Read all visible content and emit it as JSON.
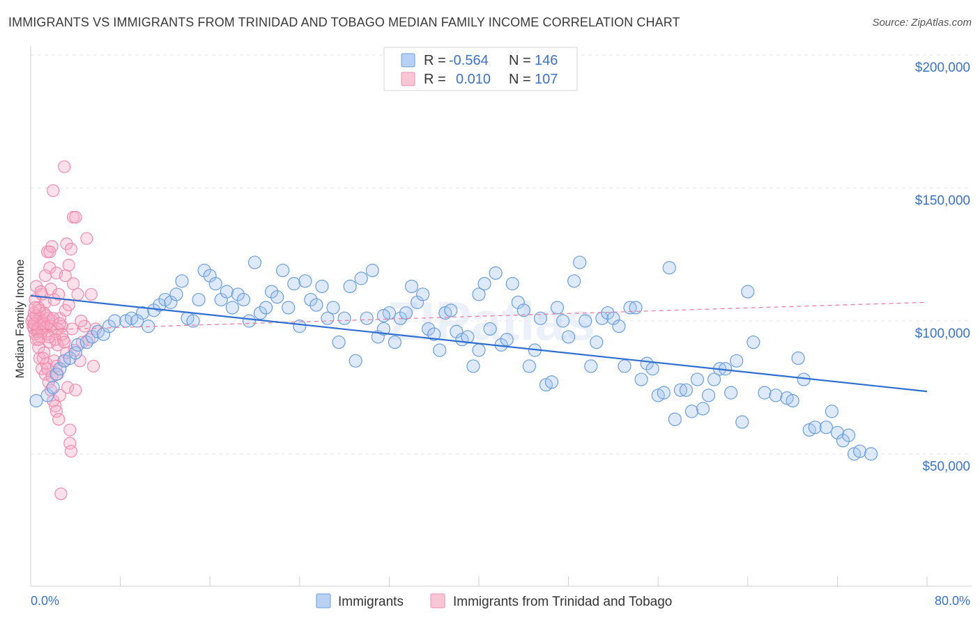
{
  "title": "IMMIGRANTS VS IMMIGRANTS FROM TRINIDAD AND TOBAGO MEDIAN FAMILY INCOME CORRELATION CHART",
  "source": "Source: ZipAtlas.com",
  "watermark": "ZIPatlas",
  "colors": {
    "blue": "#6a9ee0",
    "blue_line": "#2f6fd1",
    "pink": "#f08cad",
    "pink_line": "#e8809f",
    "axis_text": "#3b73c8"
  },
  "legend": {
    "rows": [
      {
        "r_label": "R =",
        "r_value": "-0.564",
        "n_label": "N =",
        "n_value": "146"
      },
      {
        "r_label": "R =",
        "r_value": "0.010",
        "n_label": "N =",
        "n_value": "107"
      }
    ]
  },
  "chart_data": {
    "type": "scatter",
    "ylabel": "Median Family Income",
    "x_tick_labels": [
      "0.0%",
      "80.0%"
    ],
    "y_tick_labels": [
      "$50,000",
      "$100,000",
      "$150,000",
      "$200,000"
    ],
    "xlim": [
      0,
      80
    ],
    "ylim": [
      0,
      210000
    ],
    "grid": true,
    "legend_position": "top-center",
    "series": [
      {
        "name": "Immigrants",
        "color": "#6a9ee0",
        "trend": {
          "x": [
            0,
            80
          ],
          "y": [
            109500,
            73500
          ]
        },
        "points": [
          [
            0.5,
            70000
          ],
          [
            1.5,
            72000
          ],
          [
            2.0,
            75000
          ],
          [
            2.3,
            80000
          ],
          [
            2.6,
            82000
          ],
          [
            3.0,
            85000
          ],
          [
            3.5,
            86000
          ],
          [
            4.0,
            88000
          ],
          [
            4.2,
            91000
          ],
          [
            5.0,
            92000
          ],
          [
            5.5,
            94000
          ],
          [
            6.0,
            96000
          ],
          [
            6.5,
            95000
          ],
          [
            7.0,
            98000
          ],
          [
            7.5,
            100000
          ],
          [
            8.5,
            100000
          ],
          [
            9.0,
            101000
          ],
          [
            10.0,
            103000
          ],
          [
            10.5,
            98000
          ],
          [
            11.0,
            104000
          ],
          [
            11.5,
            106000
          ],
          [
            12.0,
            108000
          ],
          [
            12.5,
            107000
          ],
          [
            13.0,
            110000
          ],
          [
            13.5,
            115000
          ],
          [
            14.0,
            101000
          ],
          [
            14.5,
            100000
          ],
          [
            15.0,
            108000
          ],
          [
            15.5,
            119000
          ],
          [
            16.0,
            117000
          ],
          [
            16.5,
            114000
          ],
          [
            17.0,
            108000
          ],
          [
            17.5,
            111000
          ],
          [
            18.0,
            105000
          ],
          [
            18.5,
            110000
          ],
          [
            19.0,
            108000
          ],
          [
            19.5,
            100000
          ],
          [
            20.0,
            122000
          ],
          [
            20.5,
            103000
          ],
          [
            21.0,
            105000
          ],
          [
            21.5,
            111000
          ],
          [
            22.0,
            109000
          ],
          [
            22.5,
            119000
          ],
          [
            23.0,
            105000
          ],
          [
            23.5,
            114000
          ],
          [
            24.0,
            98000
          ],
          [
            24.5,
            115000
          ],
          [
            25.0,
            108000
          ],
          [
            25.5,
            106000
          ],
          [
            26.0,
            113000
          ],
          [
            26.5,
            101000
          ],
          [
            27.0,
            105000
          ],
          [
            27.5,
            92000
          ],
          [
            28.0,
            101000
          ],
          [
            28.5,
            113000
          ],
          [
            29.0,
            85000
          ],
          [
            29.5,
            116000
          ],
          [
            30.0,
            101000
          ],
          [
            30.5,
            119000
          ],
          [
            31.0,
            94000
          ],
          [
            31.5,
            97000
          ],
          [
            32.0,
            103000
          ],
          [
            32.5,
            92000
          ],
          [
            33.0,
            101000
          ],
          [
            33.5,
            103000
          ],
          [
            34.0,
            113000
          ],
          [
            34.5,
            107000
          ],
          [
            35.0,
            110000
          ],
          [
            35.5,
            97000
          ],
          [
            36.0,
            95000
          ],
          [
            36.5,
            89000
          ],
          [
            37.0,
            103000
          ],
          [
            37.5,
            104000
          ],
          [
            38.0,
            96000
          ],
          [
            38.5,
            93000
          ],
          [
            39.0,
            94000
          ],
          [
            39.5,
            83000
          ],
          [
            40.0,
            110000
          ],
          [
            40.5,
            114000
          ],
          [
            41.0,
            97000
          ],
          [
            41.5,
            118000
          ],
          [
            42.0,
            91000
          ],
          [
            42.5,
            93000
          ],
          [
            43.0,
            114000
          ],
          [
            43.5,
            107000
          ],
          [
            44.0,
            104000
          ],
          [
            44.5,
            83000
          ],
          [
            45.0,
            89000
          ],
          [
            45.5,
            101000
          ],
          [
            46.0,
            76000
          ],
          [
            46.5,
            77000
          ],
          [
            47.0,
            105000
          ],
          [
            47.5,
            100000
          ],
          [
            48.0,
            94000
          ],
          [
            48.5,
            115000
          ],
          [
            49.0,
            122000
          ],
          [
            49.5,
            100000
          ],
          [
            50.0,
            83000
          ],
          [
            50.5,
            92000
          ],
          [
            51.0,
            101000
          ],
          [
            51.5,
            103000
          ],
          [
            52.0,
            101000
          ],
          [
            52.5,
            98000
          ],
          [
            53.0,
            83000
          ],
          [
            53.5,
            105000
          ],
          [
            54.0,
            105000
          ],
          [
            54.5,
            78000
          ],
          [
            55.0,
            84000
          ],
          [
            55.5,
            82000
          ],
          [
            56.0,
            72000
          ],
          [
            56.5,
            73000
          ],
          [
            57.0,
            120000
          ],
          [
            57.5,
            63000
          ],
          [
            58.0,
            74000
          ],
          [
            58.5,
            74000
          ],
          [
            59.0,
            66000
          ],
          [
            59.5,
            78000
          ],
          [
            60.0,
            67000
          ],
          [
            60.5,
            72000
          ],
          [
            61.0,
            78000
          ],
          [
            61.5,
            82000
          ],
          [
            62.0,
            82000
          ],
          [
            62.5,
            73000
          ],
          [
            63.0,
            85000
          ],
          [
            63.5,
            62000
          ],
          [
            64.0,
            111000
          ],
          [
            64.5,
            92000
          ],
          [
            65.5,
            73000
          ],
          [
            66.5,
            72000
          ],
          [
            67.5,
            71000
          ],
          [
            68.0,
            70000
          ],
          [
            68.5,
            86000
          ],
          [
            69.0,
            78000
          ],
          [
            69.5,
            59000
          ],
          [
            70.0,
            60000
          ],
          [
            71.0,
            60000
          ],
          [
            71.5,
            66000
          ],
          [
            72.0,
            58000
          ],
          [
            72.5,
            55000
          ],
          [
            73.0,
            57000
          ],
          [
            73.5,
            50000
          ],
          [
            74.0,
            51000
          ],
          [
            75.0,
            50000
          ],
          [
            9.5,
            100000
          ],
          [
            31.5,
            102000
          ],
          [
            40.0,
            89000
          ]
        ]
      },
      {
        "name": "Immigrants from Trinidad and Tobago",
        "color": "#f08cad",
        "trend": {
          "x": [
            0,
            80
          ],
          "y": [
            96500,
            107000
          ]
        },
        "points": [
          [
            0.1,
            100000
          ],
          [
            0.2,
            98000
          ],
          [
            0.3,
            97000
          ],
          [
            0.3,
            103000
          ],
          [
            0.4,
            95000
          ],
          [
            0.4,
            108000
          ],
          [
            0.5,
            93000
          ],
          [
            0.5,
            113000
          ],
          [
            0.6,
            100000
          ],
          [
            0.6,
            96000
          ],
          [
            0.7,
            105000
          ],
          [
            0.7,
            90000
          ],
          [
            0.8,
            101000
          ],
          [
            0.8,
            86000
          ],
          [
            0.9,
            99000
          ],
          [
            0.9,
            94000
          ],
          [
            1.0,
            110000
          ],
          [
            1.0,
            82000
          ],
          [
            1.1,
            100000
          ],
          [
            1.1,
            97000
          ],
          [
            1.2,
            103000
          ],
          [
            1.2,
            88000
          ],
          [
            1.3,
            80000
          ],
          [
            1.3,
            107000
          ],
          [
            1.4,
            98000
          ],
          [
            1.4,
            84000
          ],
          [
            1.5,
            126000
          ],
          [
            1.5,
            95000
          ],
          [
            1.6,
            101000
          ],
          [
            1.6,
            77000
          ],
          [
            1.7,
            120000
          ],
          [
            1.7,
            92000
          ],
          [
            1.8,
            112000
          ],
          [
            1.8,
            74000
          ],
          [
            1.9,
            128000
          ],
          [
            1.9,
            100000
          ],
          [
            2.0,
            149000
          ],
          [
            2.0,
            70000
          ],
          [
            2.1,
            108000
          ],
          [
            2.1,
            85000
          ],
          [
            2.2,
            96000
          ],
          [
            2.2,
            68000
          ],
          [
            2.3,
            118000
          ],
          [
            2.3,
            66000
          ],
          [
            2.4,
            91000
          ],
          [
            2.4,
            80000
          ],
          [
            2.5,
            110000
          ],
          [
            2.5,
            63000
          ],
          [
            2.6,
            101000
          ],
          [
            2.6,
            72000
          ],
          [
            2.7,
            35000
          ],
          [
            2.8,
            98000
          ],
          [
            2.9,
            93000
          ],
          [
            3.0,
            158000
          ],
          [
            3.0,
            85000
          ],
          [
            3.1,
            104000
          ],
          [
            3.2,
            129000
          ],
          [
            3.3,
            75000
          ],
          [
            3.4,
            106000
          ],
          [
            3.5,
            59000
          ],
          [
            3.5,
            54000
          ],
          [
            3.6,
            51000
          ],
          [
            3.7,
            97000
          ],
          [
            3.8,
            139000
          ],
          [
            3.9,
            89000
          ],
          [
            4.0,
            74000
          ],
          [
            4.2,
            110000
          ],
          [
            4.4,
            85000
          ],
          [
            4.6,
            92000
          ],
          [
            4.8,
            98000
          ],
          [
            5.0,
            131000
          ],
          [
            5.2,
            93000
          ],
          [
            5.4,
            110000
          ],
          [
            5.6,
            83000
          ],
          [
            5.8,
            97000
          ],
          [
            0.2,
            101000
          ],
          [
            0.3,
            99000
          ],
          [
            0.5,
            102000
          ],
          [
            0.6,
            97000
          ],
          [
            0.8,
            104000
          ],
          [
            1.0,
            96000
          ],
          [
            1.2,
            99000
          ],
          [
            1.4,
            102000
          ],
          [
            1.6,
            94000
          ],
          [
            1.8,
            98000
          ],
          [
            2.0,
            101000
          ],
          [
            2.2,
            93000
          ],
          [
            2.4,
            97000
          ],
          [
            2.6,
            99000
          ],
          [
            2.8,
            95000
          ],
          [
            3.0,
            92000
          ],
          [
            3.2,
            88000
          ],
          [
            3.4,
            121000
          ],
          [
            3.6,
            127000
          ],
          [
            3.8,
            114000
          ],
          [
            4.0,
            139000
          ],
          [
            4.5,
            100000
          ],
          [
            1.1,
            86000
          ],
          [
            1.5,
            82000
          ],
          [
            1.9,
            79000
          ],
          [
            2.3,
            83000
          ],
          [
            0.9,
            111000
          ],
          [
            0.4,
            105000
          ],
          [
            0.7,
            93000
          ],
          [
            1.3,
            117000
          ],
          [
            1.7,
            126000
          ],
          [
            3.1,
            117000
          ]
        ]
      }
    ]
  }
}
